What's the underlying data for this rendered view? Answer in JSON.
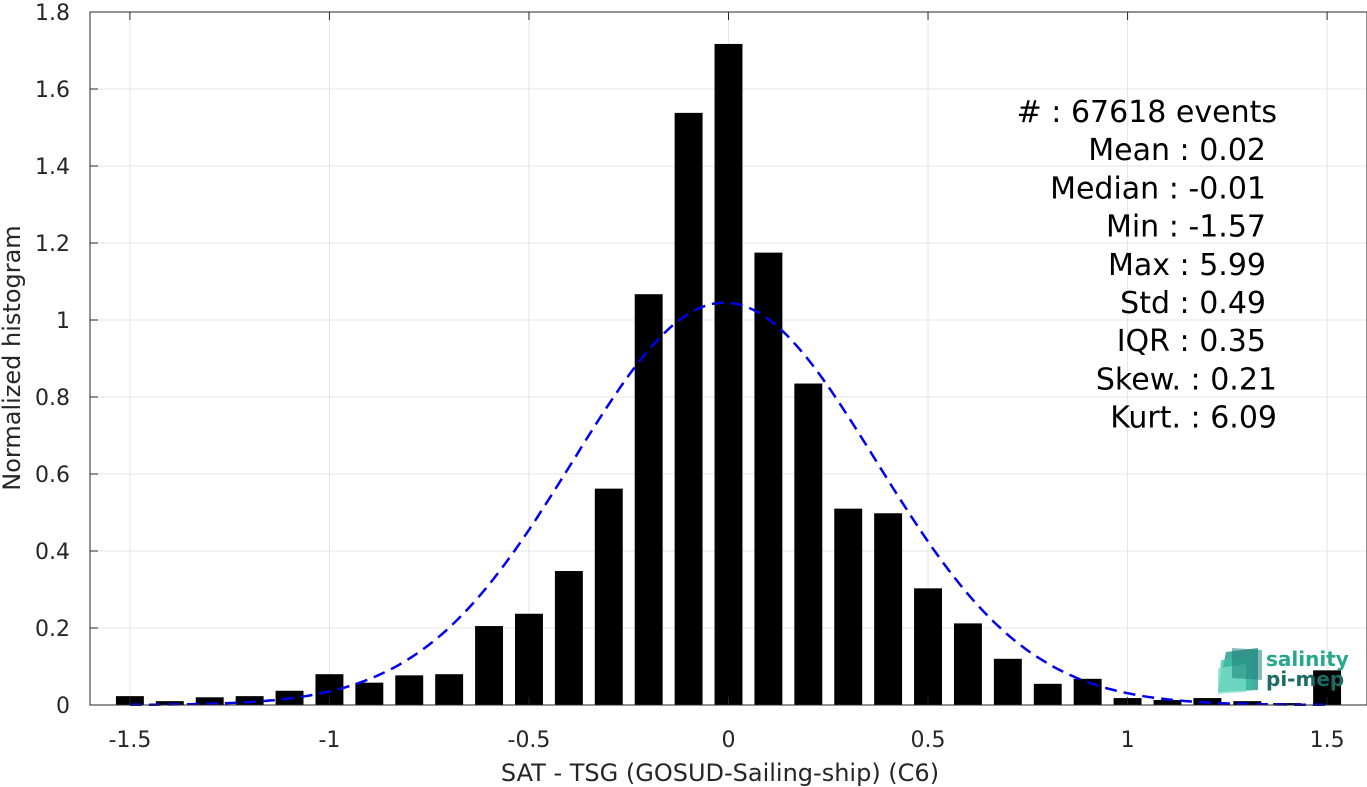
{
  "chart_data": {
    "type": "bar",
    "xlabel": "SAT - TSG (GOSUD-Sailing-ship) (C6)",
    "ylabel": "Normalized histogram",
    "xlim": [
      -1.6,
      1.6
    ],
    "ylim": [
      0,
      1.8
    ],
    "xticks": [
      -1.5,
      -1,
      -0.5,
      0,
      0.5,
      1,
      1.5
    ],
    "xtick_labels": [
      "-1.5",
      "-1",
      "-0.5",
      "0",
      "0.5",
      "1",
      "1.5"
    ],
    "yticks": [
      0,
      0.2,
      0.4,
      0.6,
      0.8,
      1,
      1.2,
      1.4,
      1.6,
      1.8
    ],
    "ytick_labels": [
      "0",
      "0.2",
      "0.4",
      "0.6",
      "0.8",
      "1",
      "1.2",
      "1.4",
      "1.6",
      "1.8"
    ],
    "grid": true,
    "bar_width": 0.07,
    "bar_color": "#000000",
    "bins": [
      {
        "x": -1.5,
        "y": 0.023
      },
      {
        "x": -1.4,
        "y": 0.01
      },
      {
        "x": -1.3,
        "y": 0.02
      },
      {
        "x": -1.2,
        "y": 0.023
      },
      {
        "x": -1.1,
        "y": 0.037
      },
      {
        "x": -1.0,
        "y": 0.08
      },
      {
        "x": -0.9,
        "y": 0.058
      },
      {
        "x": -0.8,
        "y": 0.077
      },
      {
        "x": -0.7,
        "y": 0.08
      },
      {
        "x": -0.6,
        "y": 0.205
      },
      {
        "x": -0.5,
        "y": 0.237
      },
      {
        "x": -0.4,
        "y": 0.348
      },
      {
        "x": -0.3,
        "y": 0.562
      },
      {
        "x": -0.2,
        "y": 1.067
      },
      {
        "x": -0.1,
        "y": 1.538
      },
      {
        "x": 0.0,
        "y": 1.717
      },
      {
        "x": 0.1,
        "y": 1.175
      },
      {
        "x": 0.2,
        "y": 0.835
      },
      {
        "x": 0.3,
        "y": 0.51
      },
      {
        "x": 0.4,
        "y": 0.498
      },
      {
        "x": 0.5,
        "y": 0.303
      },
      {
        "x": 0.6,
        "y": 0.212
      },
      {
        "x": 0.7,
        "y": 0.12
      },
      {
        "x": 0.8,
        "y": 0.055
      },
      {
        "x": 0.9,
        "y": 0.068
      },
      {
        "x": 1.0,
        "y": 0.018
      },
      {
        "x": 1.1,
        "y": 0.013
      },
      {
        "x": 1.2,
        "y": 0.018
      },
      {
        "x": 1.3,
        "y": 0.01
      },
      {
        "x": 1.4,
        "y": 0.005
      },
      {
        "x": 1.5,
        "y": 0.09
      }
    ],
    "fit_curve": {
      "style": "dashed",
      "color": "#0000ee",
      "x_range": [
        -1.5,
        1.5
      ],
      "peak_y": 1.045,
      "center_x": -0.01,
      "width_sigma": 0.38
    }
  },
  "stats": {
    "lines": [
      "#  : 67618 events",
      "Mean : 0.02",
      "Median : -0.01",
      "Min : -1.57",
      "Max : 5.99",
      "Std : 0.49",
      "IQR : 0.35",
      "Skew. : 0.21",
      "Kurt. : 6.09"
    ]
  },
  "logo": {
    "line1": "salinity",
    "line2": "pi-mep",
    "color1": "#27a88c",
    "color2": "#1b6b66"
  }
}
